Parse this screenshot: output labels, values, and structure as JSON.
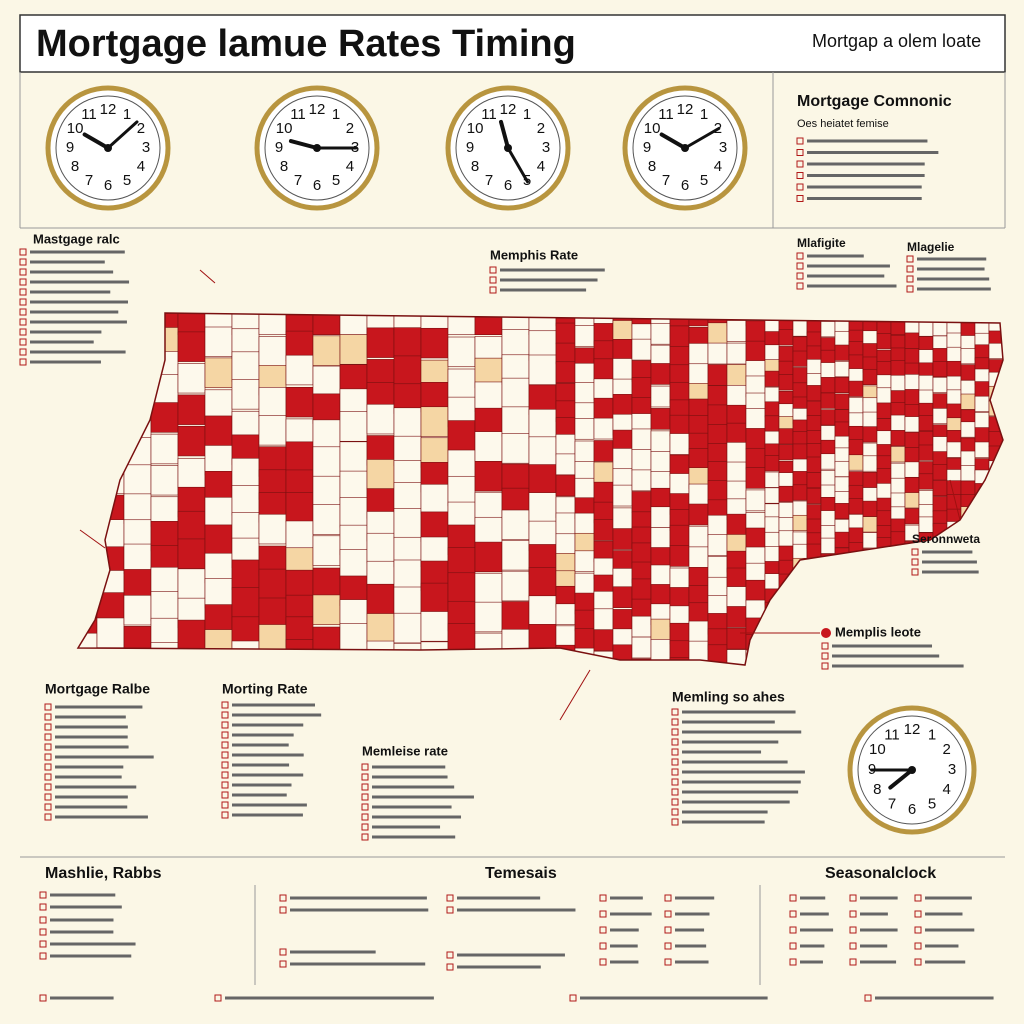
{
  "header": {
    "title": "Mortgage lamue Rates Timing",
    "subtitle": "Mortgap a olem loate"
  },
  "clock_numerals": [
    "12",
    "1",
    "2",
    "3",
    "4",
    "5",
    "6",
    "7",
    "8",
    "9",
    "10",
    "11"
  ],
  "panel": {
    "title": "Mortgage Comnonic",
    "subtitle": "Oes heiatet femise"
  },
  "map_labels": [
    "Mastgage ralc",
    "Memphis Rate",
    "Mlafigite",
    "Mlagelie",
    "Seronnweta",
    "Memplis leote",
    "Mortgage Ralbe",
    "Morting Rate",
    "Memleise rate",
    "Memling so ahes"
  ],
  "footer": [
    "Mashlie, Rabbs",
    "Temesais",
    "Seasonalclock"
  ]
}
